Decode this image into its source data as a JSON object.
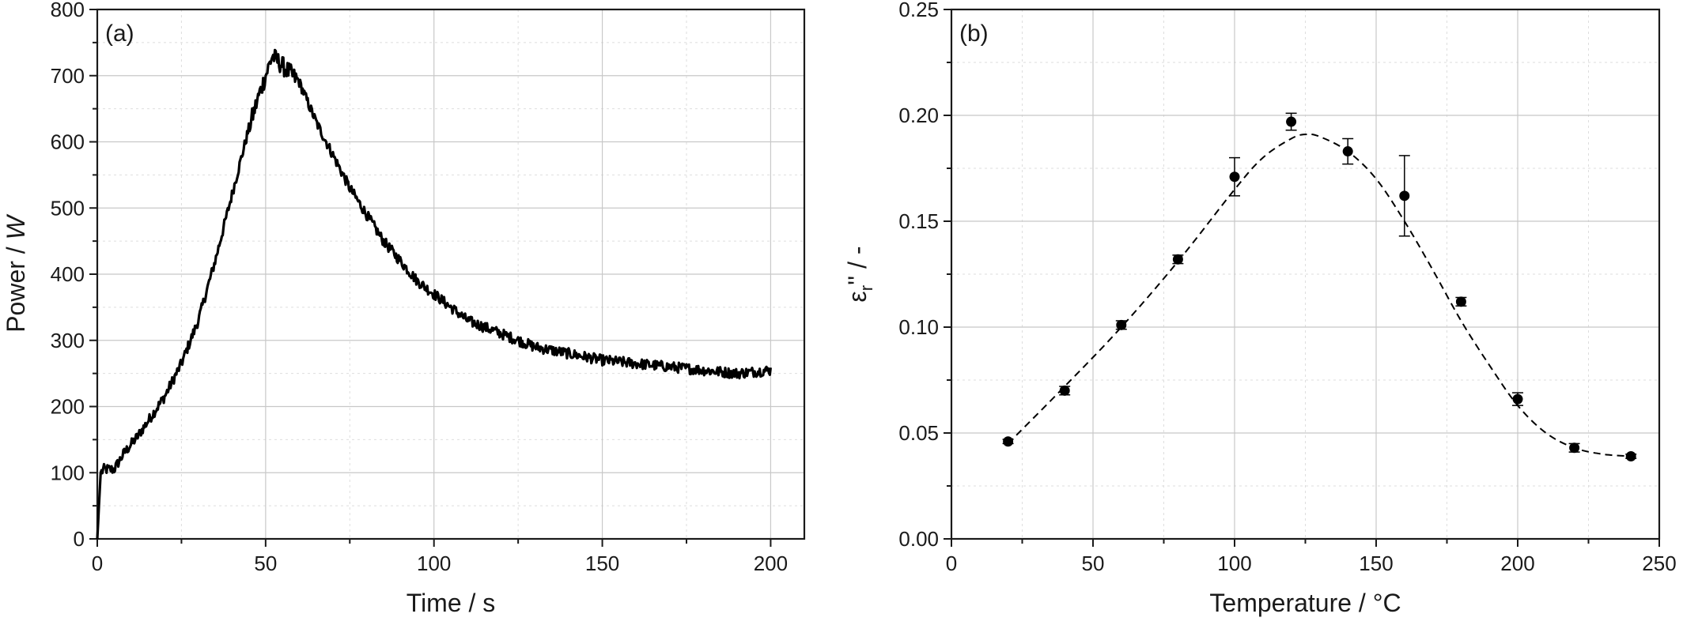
{
  "chart_data": [
    {
      "panel_label": "(a)",
      "type": "line",
      "xlabel": "Time / s",
      "ylabel_text": "Power / ",
      "ylabel_unit": "W",
      "xlim": [
        0,
        210
      ],
      "ylim": [
        0,
        800
      ],
      "xticks": [
        0,
        50,
        100,
        150,
        200
      ],
      "yticks": [
        0,
        100,
        200,
        300,
        400,
        500,
        600,
        700,
        800
      ],
      "grid": true,
      "series": [
        {
          "color": "#000000",
          "x": [
            0,
            1,
            2,
            5,
            8,
            12,
            16,
            20,
            25,
            30,
            35,
            40,
            45,
            48,
            50,
            52,
            54,
            56,
            58,
            60,
            65,
            70,
            75,
            80,
            85,
            90,
            95,
            100,
            110,
            120,
            130,
            140,
            150,
            160,
            170,
            180,
            190,
            200
          ],
          "y": [
            0,
            100,
            105,
            105,
            130,
            155,
            185,
            215,
            265,
            330,
            420,
            520,
            620,
            670,
            700,
            730,
            720,
            710,
            700,
            690,
            630,
            580,
            530,
            490,
            450,
            420,
            390,
            370,
            330,
            310,
            290,
            280,
            270,
            265,
            260,
            255,
            250,
            255
          ],
          "noise_amplitude": 8
        }
      ]
    },
    {
      "panel_label": "(b)",
      "type": "scatter",
      "xlabel": "Temperature / °C",
      "ylabel_symbol": "ε",
      "ylabel_sub": "r",
      "ylabel_rest": "'' / -",
      "xlim": [
        0,
        250
      ],
      "ylim": [
        0,
        0.25
      ],
      "xticks": [
        0,
        50,
        100,
        150,
        200,
        250
      ],
      "yticks": [
        "0.00",
        "0.05",
        "0.10",
        "0.15",
        "0.20",
        "0.25"
      ],
      "grid": true,
      "series": [
        {
          "color": "#000000",
          "x": [
            20,
            40,
            60,
            80,
            100,
            120,
            140,
            160,
            180,
            200,
            220,
            240
          ],
          "y": [
            0.046,
            0.07,
            0.101,
            0.132,
            0.171,
            0.197,
            0.183,
            0.162,
            0.112,
            0.066,
            0.043,
            0.039
          ],
          "err": [
            0.001,
            0.002,
            0.002,
            0.002,
            0.009,
            0.004,
            0.006,
            0.019,
            0.002,
            0.003,
            0.002,
            0.001
          ]
        }
      ],
      "fit_curve": {
        "style": "dashed",
        "x": [
          20,
          40,
          60,
          80,
          100,
          110,
          120,
          125,
          130,
          140,
          150,
          160,
          170,
          180,
          190,
          200,
          210,
          220,
          230,
          240
        ],
        "y": [
          0.045,
          0.072,
          0.1,
          0.131,
          0.165,
          0.18,
          0.189,
          0.191,
          0.19,
          0.183,
          0.17,
          0.15,
          0.127,
          0.103,
          0.082,
          0.063,
          0.05,
          0.043,
          0.04,
          0.039
        ]
      }
    }
  ]
}
